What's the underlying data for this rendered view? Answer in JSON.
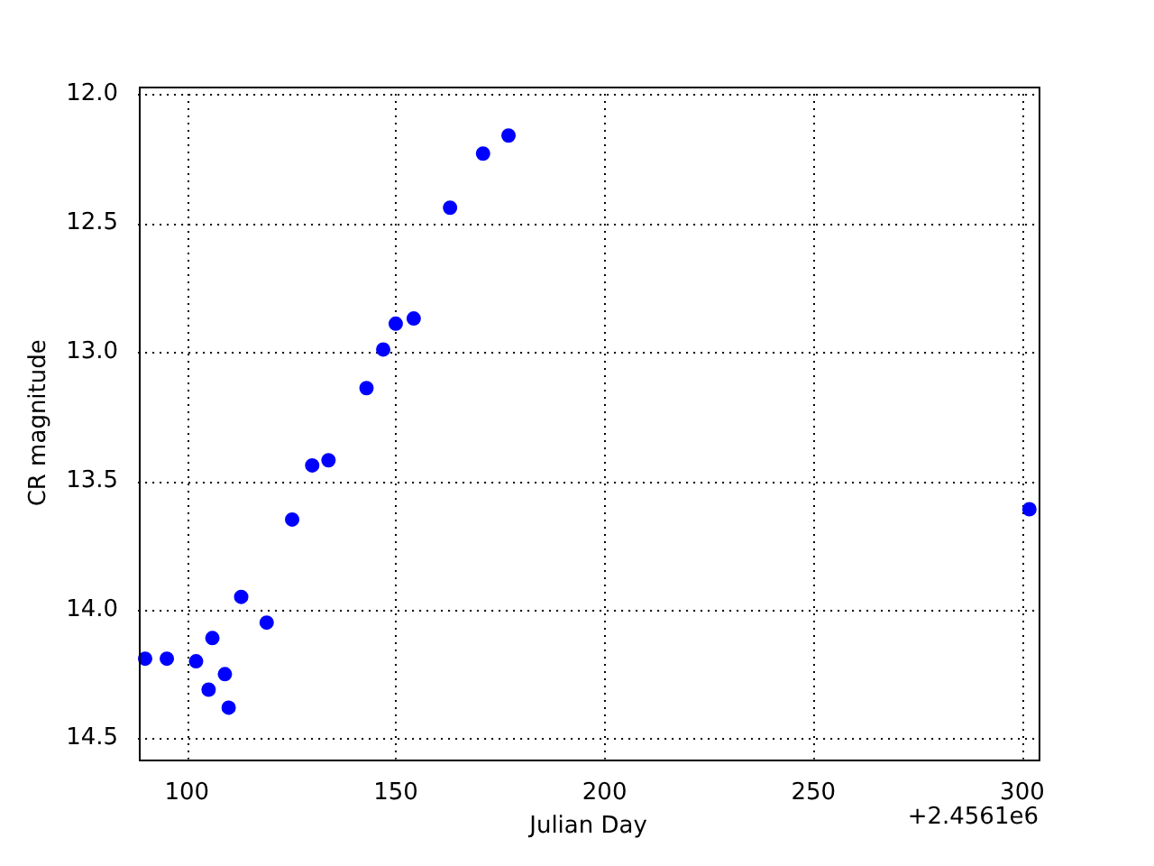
{
  "chart_data": {
    "type": "scatter",
    "xlabel": "Julian Day",
    "ylabel": "CR magnitude",
    "annotations": [
      "+2.4561e6"
    ],
    "x": [
      90.0,
      95.2,
      102.2,
      105.2,
      106.1,
      109.1,
      110.0,
      113.0,
      119.1,
      125.2,
      130.0,
      133.9,
      143.0,
      147.0,
      150.0,
      154.3,
      163.0,
      170.9,
      177.0,
      301.7
    ],
    "series": [
      {
        "color": "#0000ff",
        "values": [
          14.19,
          14.19,
          14.2,
          14.31,
          14.11,
          14.25,
          14.38,
          13.95,
          14.05,
          13.65,
          13.44,
          13.42,
          13.14,
          12.99,
          12.89,
          12.87,
          12.44,
          12.23,
          12.16,
          13.61
        ]
      }
    ],
    "xlim": [
      88.3,
      303.9
    ],
    "xticks": [
      100,
      150,
      200,
      250,
      300
    ],
    "ylim": [
      14.58,
      11.97
    ],
    "yticks": [
      {
        "value": 12,
        "label": "12.0"
      },
      {
        "value": 12.5,
        "label": "12.5"
      },
      {
        "value": 13,
        "label": "13.0"
      },
      {
        "value": 13.5,
        "label": "13.5"
      },
      {
        "value": 14,
        "label": "14.0"
      },
      {
        "value": 14.5,
        "label": "14.5"
      }
    ],
    "grid": true,
    "marker": "circle",
    "legend": false
  }
}
